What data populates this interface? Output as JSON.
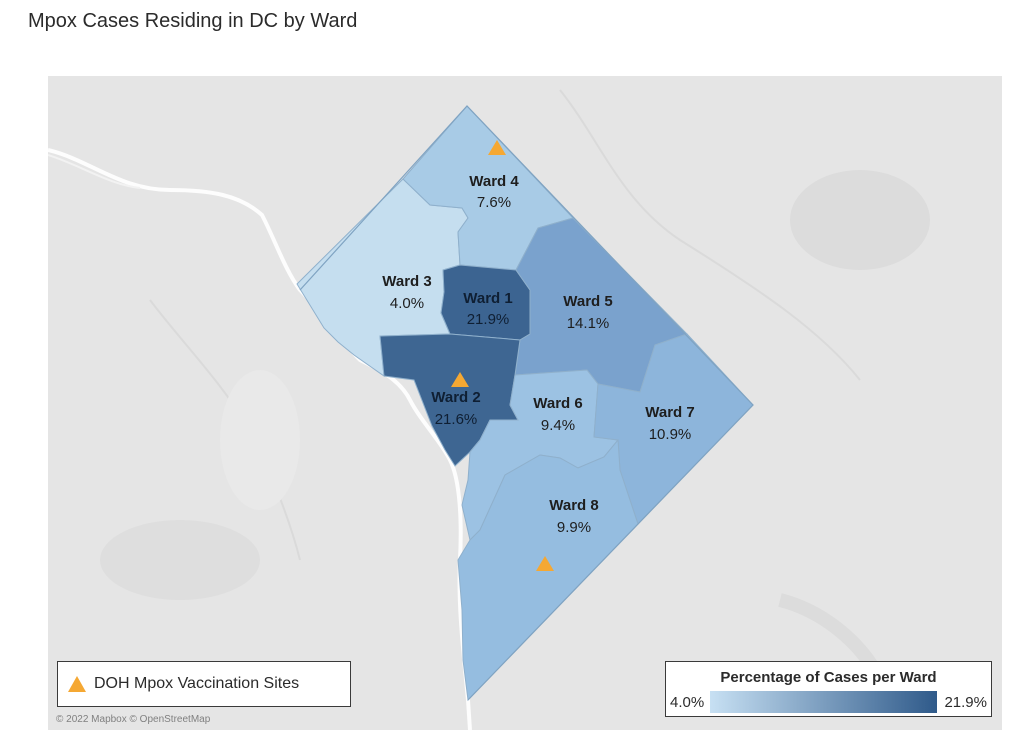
{
  "page": {
    "title": "Mpox Cases Residing in DC by Ward"
  },
  "map": {
    "wards": [
      {
        "name": "Ward 1",
        "value": "21.9%",
        "color": "#3c6491"
      },
      {
        "name": "Ward 2",
        "value": "21.6%",
        "color": "#3e6692"
      },
      {
        "name": "Ward 3",
        "value": "4.0%",
        "color": "#c5deef"
      },
      {
        "name": "Ward 4",
        "value": "7.6%",
        "color": "#a8cbe6"
      },
      {
        "name": "Ward 5",
        "value": "14.1%",
        "color": "#7aa2cd"
      },
      {
        "name": "Ward 6",
        "value": "9.4%",
        "color": "#9cc2e3"
      },
      {
        "name": "Ward 7",
        "value": "10.9%",
        "color": "#8db5db"
      },
      {
        "name": "Ward 8",
        "value": "9.9%",
        "color": "#95bde0"
      }
    ],
    "site_marker_color": "#f5a833",
    "credit": "© 2022 Mapbox © OpenStreetMap"
  },
  "legend": {
    "sites_label": "DOH Mpox Vaccination Sites",
    "scale_title": "Percentage of Cases per Ward",
    "scale_min": "4.0%",
    "scale_max": "21.9%",
    "scale_color_low": "#c7e0f3",
    "scale_color_high": "#2f5a8a"
  }
}
